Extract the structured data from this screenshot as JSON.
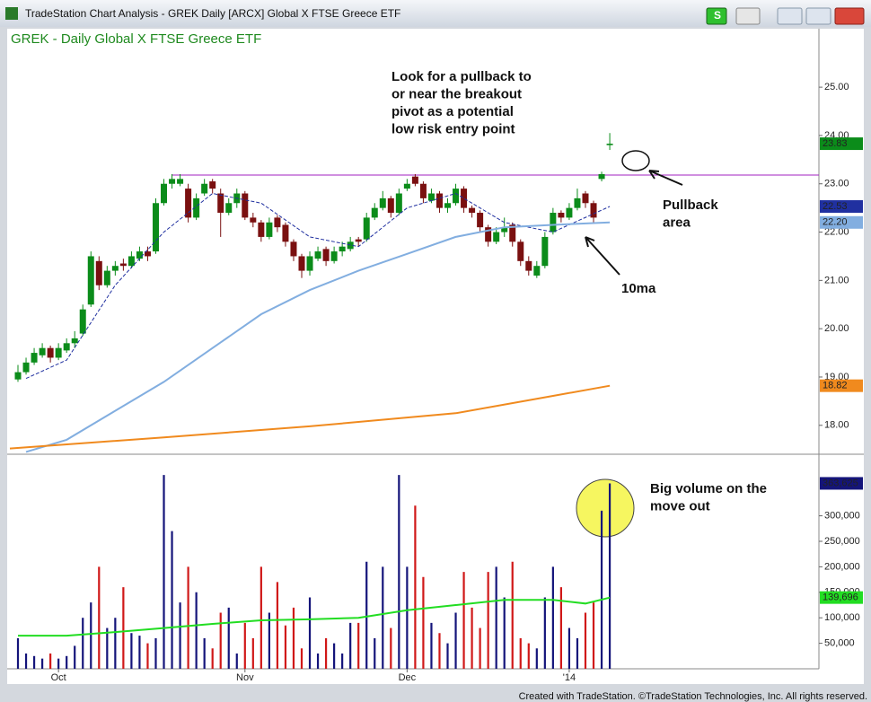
{
  "chart_data": {
    "type": "candlestick",
    "window_title": "TradeStation Chart Analysis - GREK Daily [ARCX] Global X FTSE Greece ETF",
    "button_label": "S",
    "header": "GREK - Daily  Global X FTSE Greece ETF",
    "footer": "Created with TradeStation. ©TradeStation Technologies, Inc. All rights reserved.",
    "xlim": [
      -1.33,
      98.8
    ],
    "xticks": [
      {
        "value": 5,
        "label": "Oct"
      },
      {
        "value": 28,
        "label": "Nov"
      },
      {
        "value": 48,
        "label": "Dec"
      },
      {
        "value": 68,
        "label": "'14"
      }
    ],
    "ylim": [
      17.42,
      26.21
    ],
    "yticks": [
      {
        "value": 18,
        "label": "18.00"
      },
      {
        "value": 19,
        "label": "19.00"
      },
      {
        "value": 20,
        "label": "20.00"
      },
      {
        "value": 21,
        "label": "21.00"
      },
      {
        "value": 22,
        "label": "22.00"
      },
      {
        "value": 23,
        "label": "23.00"
      },
      {
        "value": 24,
        "label": "24.00"
      },
      {
        "value": 25,
        "label": "25.00"
      }
    ],
    "up_color": "#0b8c1a",
    "down_color": "#7a1010",
    "candles": [
      [
        18.95,
        19.25,
        18.9,
        19.1
      ],
      [
        19.1,
        19.4,
        19.05,
        19.3
      ],
      [
        19.3,
        19.6,
        19.25,
        19.5
      ],
      [
        19.45,
        19.7,
        19.4,
        19.6
      ],
      [
        19.6,
        19.65,
        19.3,
        19.4
      ],
      [
        19.4,
        19.7,
        19.35,
        19.6
      ],
      [
        19.55,
        19.8,
        19.5,
        19.7
      ],
      [
        19.7,
        19.95,
        19.6,
        19.8
      ],
      [
        19.9,
        20.5,
        19.85,
        20.4
      ],
      [
        20.5,
        21.6,
        20.45,
        21.5
      ],
      [
        21.4,
        21.5,
        20.8,
        20.9
      ],
      [
        20.9,
        21.3,
        20.85,
        21.2
      ],
      [
        21.2,
        21.4,
        21.1,
        21.3
      ],
      [
        21.35,
        21.45,
        21.2,
        21.3
      ],
      [
        21.3,
        21.6,
        21.25,
        21.5
      ],
      [
        21.45,
        21.7,
        21.4,
        21.6
      ],
      [
        21.6,
        21.7,
        21.4,
        21.5
      ],
      [
        21.6,
        22.7,
        21.55,
        22.6
      ],
      [
        22.6,
        23.1,
        22.55,
        23.0
      ],
      [
        23.0,
        23.2,
        22.9,
        23.1
      ],
      [
        23.0,
        23.2,
        22.95,
        23.1
      ],
      [
        22.9,
        23.0,
        22.2,
        22.3
      ],
      [
        22.3,
        22.8,
        22.25,
        22.7
      ],
      [
        22.8,
        23.1,
        22.75,
        23.0
      ],
      [
        23.05,
        23.1,
        22.8,
        22.9
      ],
      [
        22.8,
        22.9,
        21.9,
        22.4
      ],
      [
        22.4,
        22.7,
        22.35,
        22.6
      ],
      [
        22.6,
        22.9,
        22.5,
        22.8
      ],
      [
        22.8,
        22.85,
        22.25,
        22.3
      ],
      [
        22.3,
        22.4,
        22.1,
        22.2
      ],
      [
        22.2,
        22.25,
        21.8,
        21.9
      ],
      [
        21.9,
        22.3,
        21.85,
        22.2
      ],
      [
        22.3,
        22.35,
        22.0,
        22.1
      ],
      [
        22.15,
        22.2,
        21.7,
        21.8
      ],
      [
        21.8,
        21.85,
        21.4,
        21.5
      ],
      [
        21.5,
        21.55,
        21.05,
        21.2
      ],
      [
        21.2,
        21.6,
        21.1,
        21.5
      ],
      [
        21.45,
        21.7,
        21.4,
        21.6
      ],
      [
        21.65,
        21.7,
        21.3,
        21.4
      ],
      [
        21.4,
        21.7,
        21.35,
        21.6
      ],
      [
        21.6,
        21.8,
        21.5,
        21.7
      ],
      [
        21.65,
        21.9,
        21.6,
        21.8
      ],
      [
        21.85,
        21.9,
        21.7,
        21.8
      ],
      [
        21.85,
        22.4,
        21.8,
        22.3
      ],
      [
        22.3,
        22.6,
        22.25,
        22.5
      ],
      [
        22.5,
        22.85,
        22.45,
        22.7
      ],
      [
        22.7,
        22.75,
        22.3,
        22.4
      ],
      [
        22.4,
        22.9,
        22.35,
        22.8
      ],
      [
        22.9,
        23.1,
        22.85,
        23.0
      ],
      [
        23.15,
        23.2,
        22.95,
        23.0
      ],
      [
        23.0,
        23.05,
        22.6,
        22.7
      ],
      [
        22.65,
        22.9,
        22.6,
        22.8
      ],
      [
        22.8,
        22.85,
        22.4,
        22.5
      ],
      [
        22.5,
        22.7,
        22.4,
        22.6
      ],
      [
        22.6,
        23.0,
        22.55,
        22.9
      ],
      [
        22.9,
        22.95,
        22.4,
        22.5
      ],
      [
        22.5,
        22.55,
        22.3,
        22.4
      ],
      [
        22.4,
        22.45,
        22.0,
        22.1
      ],
      [
        22.1,
        22.15,
        21.7,
        21.8
      ],
      [
        21.8,
        22.1,
        21.75,
        22.0
      ],
      [
        22.0,
        22.3,
        21.9,
        22.1
      ],
      [
        22.15,
        22.2,
        21.7,
        21.8
      ],
      [
        21.8,
        21.85,
        21.3,
        21.4
      ],
      [
        21.4,
        21.5,
        21.1,
        21.2
      ],
      [
        21.1,
        21.4,
        21.05,
        21.3
      ],
      [
        21.3,
        22.0,
        21.25,
        21.9
      ],
      [
        22.0,
        22.5,
        21.95,
        22.4
      ],
      [
        22.4,
        22.45,
        22.2,
        22.3
      ],
      [
        22.3,
        22.6,
        22.25,
        22.5
      ],
      [
        22.5,
        22.9,
        22.45,
        22.7
      ],
      [
        22.8,
        22.85,
        22.5,
        22.6
      ],
      [
        22.6,
        22.65,
        22.2,
        22.3
      ],
      [
        23.1,
        23.25,
        23.05,
        23.2
      ],
      [
        23.8,
        24.05,
        23.7,
        23.83
      ]
    ],
    "pivot_line": 23.18,
    "pivot_color": "#a020c0",
    "volume_ylim": [
      0,
      419000
    ],
    "volume_yticks": [
      {
        "value": 50000,
        "label": "50,000"
      },
      {
        "value": 100000,
        "label": "100,000"
      },
      {
        "value": 150000,
        "label": "150,000"
      },
      {
        "value": 200000,
        "label": "200,000"
      },
      {
        "value": 250000,
        "label": "250,000"
      },
      {
        "value": 300000,
        "label": "300,000"
      }
    ],
    "volume_up_color": "#14147a",
    "volume_down_color": "#d01818",
    "volume": [
      60000,
      30000,
      25000,
      20000,
      30000,
      20000,
      25000,
      45000,
      100000,
      130000,
      200000,
      80000,
      100000,
      160000,
      70000,
      65000,
      50000,
      60000,
      380000,
      270000,
      130000,
      200000,
      150000,
      60000,
      40000,
      110000,
      120000,
      30000,
      90000,
      60000,
      200000,
      110000,
      170000,
      85000,
      120000,
      40000,
      140000,
      30000,
      60000,
      50000,
      30000,
      90000,
      90000,
      210000,
      60000,
      200000,
      80000,
      380000,
      200000,
      320000,
      180000,
      90000,
      70000,
      50000,
      110000,
      190000,
      120000,
      80000,
      190000,
      200000,
      140000,
      210000,
      60000,
      50000,
      40000,
      140000,
      200000,
      160000,
      80000,
      60000,
      110000,
      130000,
      310000,
      363625
    ],
    "volume_last_label": "363,625",
    "volume_last_color": "#14147a",
    "overlays": [
      {
        "color": "#2030a0",
        "dashed": true,
        "axis": "price",
        "x": [
          1,
          6,
          12,
          18,
          24,
          30,
          36,
          42,
          48,
          54,
          60,
          66,
          73
        ],
        "values": [
          18.97,
          19.35,
          20.9,
          22.0,
          22.8,
          22.6,
          21.9,
          21.7,
          22.5,
          22.8,
          22.2,
          22.0,
          22.53
        ],
        "last_label": "22.53"
      },
      {
        "color": "#82aee0",
        "dashed": false,
        "axis": "price",
        "x": [
          1,
          6,
          12,
          18,
          24,
          30,
          36,
          42,
          48,
          54,
          60,
          66,
          73
        ],
        "values": [
          17.45,
          17.7,
          18.3,
          18.9,
          19.6,
          20.3,
          20.8,
          21.2,
          21.55,
          21.9,
          22.1,
          22.15,
          22.2
        ],
        "last_label": "22.20"
      },
      {
        "color": "#f08a1e",
        "dashed": false,
        "axis": "price",
        "x": [
          -1,
          18,
          36,
          54,
          66,
          73
        ],
        "values": [
          17.52,
          17.75,
          17.98,
          18.25,
          18.61,
          18.82
        ],
        "last_label": "18.82"
      },
      {
        "color": "#22dd22",
        "dashed": false,
        "axis": "volume",
        "x": [
          0,
          6,
          12,
          18,
          24,
          30,
          36,
          42,
          48,
          54,
          60,
          66,
          70,
          73
        ],
        "values": [
          65000,
          65000,
          72000,
          80000,
          88000,
          95000,
          97000,
          100000,
          115000,
          125000,
          135000,
          135000,
          128000,
          139696
        ],
        "last_label": "139,696"
      }
    ],
    "annotations": [
      [
        "Look for a pullback to",
        "or near the breakout",
        "pivot as a potential",
        "low risk entry point"
      ],
      [
        "Pullback",
        "area"
      ],
      [
        "10ma"
      ],
      [
        "Big volume on the",
        "move out"
      ]
    ]
  }
}
